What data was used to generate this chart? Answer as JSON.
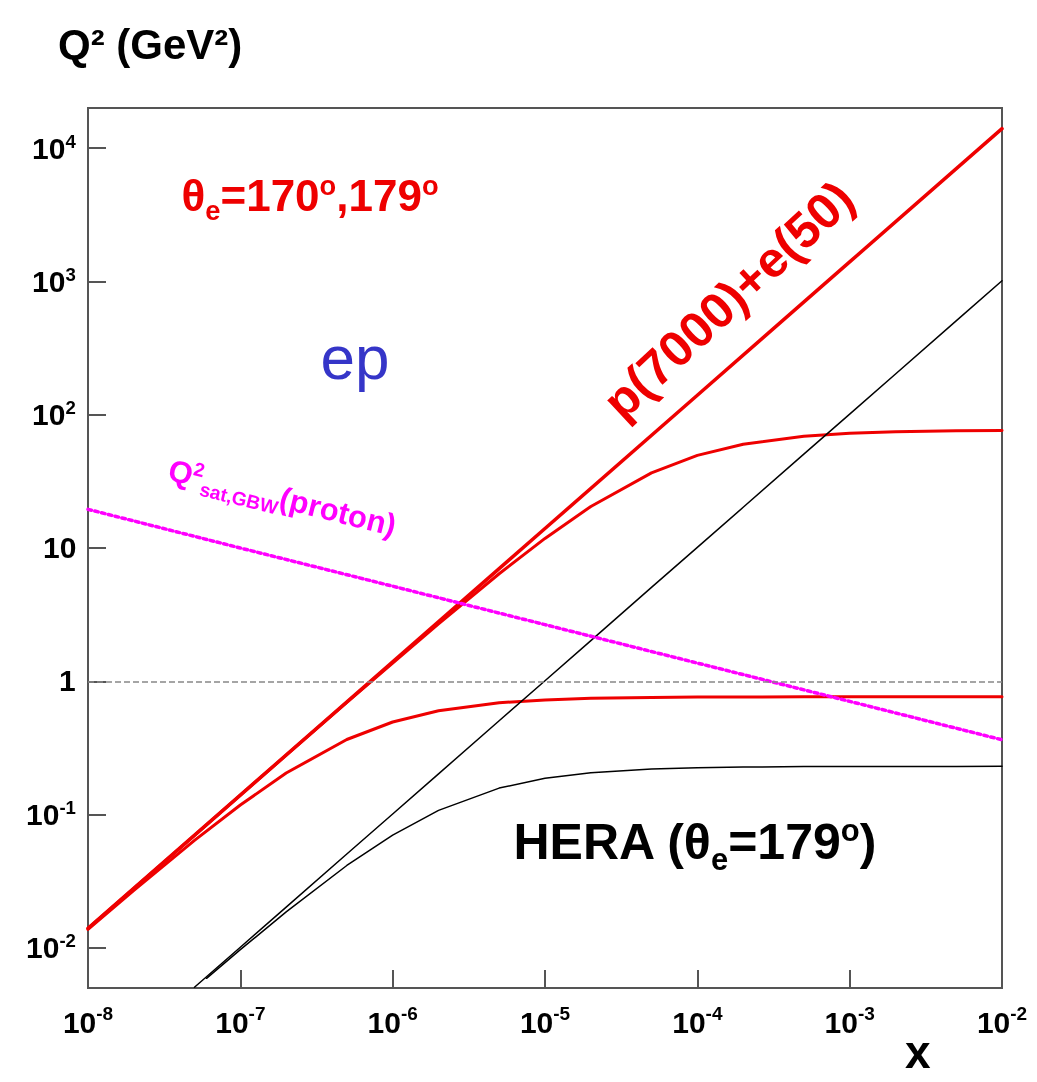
{
  "chart_data": {
    "type": "line",
    "xlabel": "x",
    "ylabel": "Q² (GeV²)",
    "log": "xy",
    "grid": false,
    "marker": "none",
    "line_style": "solid",
    "xlim": [
      1e-08,
      0.01
    ],
    "ylim": [
      0.005,
      20000
    ],
    "xticks": [
      {
        "value": 1e-08,
        "label": "10$^{-8}$"
      },
      {
        "value": 1e-07,
        "label": "10$^{-7}$"
      },
      {
        "value": 1e-06,
        "label": "10$^{-6}$"
      },
      {
        "value": 1e-05,
        "label": "10$^{-5}$"
      },
      {
        "value": 0.0001,
        "label": "10$^{-4}$"
      },
      {
        "value": 0.001,
        "label": "10$^{-3}$"
      },
      {
        "value": 0.01,
        "label": "10$^{-2}$"
      }
    ],
    "yticks": [
      {
        "value": 0.01,
        "label": "10$^{-2}$"
      },
      {
        "value": 0.1,
        "label": "10$^{-1}$"
      },
      1,
      10,
      {
        "value": 100,
        "label": "10$^{2}$"
      },
      {
        "value": 1000,
        "label": "10$^{3}$"
      },
      {
        "value": 10000,
        "label": "10$^{4}$"
      }
    ],
    "series": [
      {
        "name": "p(7000)+e(50)",
        "color": "#ee0000",
        "x": [
          1e-08,
          1e-07,
          1e-06,
          1e-05,
          0.0001,
          0.001,
          0.01
        ],
        "values": [
          0.014,
          0.14,
          1.4,
          14,
          140,
          1400,
          14000
        ]
      },
      {
        "color": "#ee0000",
        "x": [
          1e-08,
          2e-08,
          5e-08,
          1e-07,
          2e-07,
          5e-07,
          1e-06,
          2e-06,
          5e-06,
          1e-05,
          2e-05,
          5e-05,
          0.0001,
          0.0002,
          0.0005,
          0.001,
          0.002,
          0.005,
          0.01
        ],
        "values": [
          0.014,
          0.028,
          0.0699,
          0.1397,
          0.279,
          0.694,
          1.37,
          2.7,
          6.41,
          11.8,
          20.5,
          36.6,
          49.5,
          60.1,
          69,
          72.5,
          74.5,
          75.7,
          76.1
        ]
      },
      {
        "color": "#ee0000",
        "x": [
          1e-08,
          2e-08,
          5e-08,
          1e-07,
          2e-07,
          5e-07,
          1e-06,
          2e-06,
          5e-06,
          1e-05,
          2e-05,
          5e-05,
          0.0001,
          0.0002,
          0.0005,
          0.001,
          0.002,
          0.005,
          0.01
        ],
        "values": [
          0.01375,
          0.027,
          0.0641,
          0.118,
          0.205,
          0.366,
          0.495,
          0.601,
          0.69,
          0.725,
          0.745,
          0.757,
          0.761,
          0.763,
          0.764,
          0.765,
          0.765,
          0.765,
          0.765
        ]
      },
      {
        "color": "#000000",
        "x": [
          5e-08,
          1e-07,
          2e-07,
          5e-07,
          1e-06,
          2e-06,
          5e-06,
          1e-05,
          2e-05,
          5e-05,
          0.0001,
          0.0002,
          0.0005,
          0.001,
          0.002,
          0.005,
          0.01
        ],
        "values": [
          0.00506,
          0.0101,
          0.0202,
          0.0506,
          0.101,
          0.202,
          0.506,
          1.01,
          2.02,
          5.06,
          10.1,
          20.2,
          50.6,
          101,
          202,
          506,
          1012
        ]
      },
      {
        "color": "#000000",
        "x": [
          6e-08,
          1e-07,
          2e-07,
          5e-07,
          1e-06,
          2e-06,
          5e-06,
          1e-05,
          2e-05,
          5e-05,
          0.0001,
          0.0002,
          0.0005,
          0.001,
          0.002,
          0.005,
          0.01
        ],
        "values": [
          0.00591,
          0.0097,
          0.0186,
          0.0415,
          0.0702,
          0.1075,
          0.158,
          0.187,
          0.206,
          0.22,
          0.225,
          0.2274,
          0.229,
          0.2295,
          0.2297,
          0.2299,
          0.23
        ]
      },
      {
        "name": "Q$^{2}$$_{sat,GBW}$(proton)",
        "color": "#ff00ff",
        "line_style": "dotted",
        "x": [
          1e-08,
          1e-07,
          1e-06,
          1e-05,
          0.0001,
          0.001,
          0.01
        ],
        "values": [
          19.5,
          10,
          5.17,
          2.66,
          1.37,
          0.707,
          0.364
        ]
      }
    ],
    "ref_lines": [
      {
        "axis": "y",
        "value": 1,
        "color": "#888888",
        "line_style": "dashed"
      }
    ],
    "annotations": [
      "θ$_{e}$=170$^{o}$,179$^{o}$",
      "ep",
      "HERA (θ$_{e}$=179$^{o}$)"
    ]
  }
}
